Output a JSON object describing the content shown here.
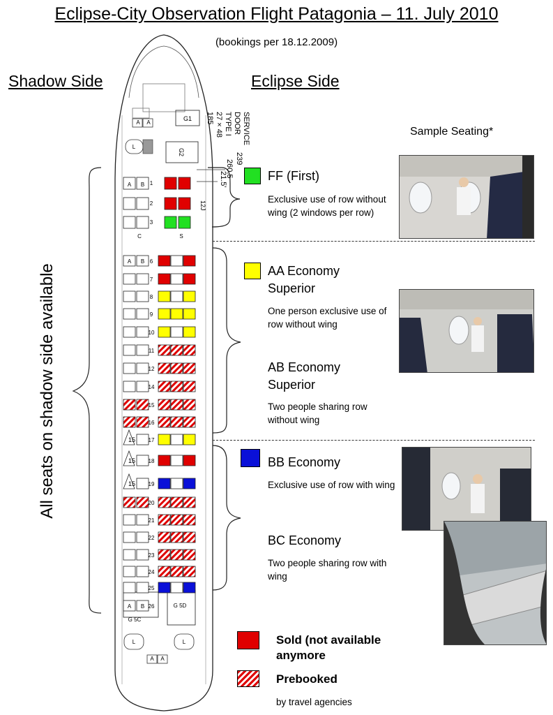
{
  "header": {
    "title": "Eclipse-City Observation Flight Patagonia – 11. July 2010",
    "subtitle": "(bookings per 18.12.2009)"
  },
  "sides": {
    "shadow": "Shadow Side",
    "eclipse": "Eclipse Side",
    "shadow_note": "All seats on shadow side available"
  },
  "sample_heading": "Sample Seating*",
  "door_annotation": {
    "lines": [
      "SERVICE",
      "DOOR",
      "TYPE I",
      "27 × 48",
      "185"
    ],
    "dims": [
      "239",
      "260.5",
      "21.5'"
    ],
    "label_12j": "12J"
  },
  "classes": [
    {
      "code": "FF",
      "name": "FF (First)",
      "desc": "Exclusive use of row without wing (2 windows per row)",
      "color": "#22e022"
    },
    {
      "code": "AA",
      "name": "AA Economy Superior",
      "desc": "One person exclusive use of row without wing",
      "color": "#ffff00"
    },
    {
      "code": "AB",
      "name": "AB Economy Superior",
      "desc": "Two people sharing row without wing",
      "color": ""
    },
    {
      "code": "BB",
      "name": "BB Economy",
      "desc": "Exclusive use of row with wing",
      "color": "#0a10d8"
    },
    {
      "code": "BC",
      "name": "BC Economy",
      "desc": "Two people sharing row with wing",
      "color": ""
    }
  ],
  "legend": {
    "sold": "Sold (not available anymore",
    "prebooked": "Prebooked",
    "prebooked_note": "by travel agencies",
    "sold_color": "#e00000"
  },
  "cabin_labels": {
    "galley_g1": "G1",
    "galley_g2": "G2",
    "galley_5c": "G\n5C",
    "galley_5d": "G\n5D",
    "seat_a": "A",
    "seat_b": "B",
    "seat_c": "C",
    "seat_s": "S",
    "lav": "L",
    "exit_15": "15"
  },
  "seat_map": [
    {
      "row": "1",
      "left": [
        "A",
        "B"
      ],
      "right": [
        "sold",
        "sold"
      ]
    },
    {
      "row": "2",
      "left": [
        "",
        ""
      ],
      "right": [
        "sold",
        "sold"
      ]
    },
    {
      "row": "3",
      "left": [
        "",
        ""
      ],
      "right": [
        "ff",
        "ff"
      ]
    },
    {
      "row": "6",
      "left": [
        "A",
        "B"
      ],
      "right": [
        "sold",
        "empty",
        "sold"
      ]
    },
    {
      "row": "7",
      "left": [
        "",
        ""
      ],
      "right": [
        "sold",
        "empty",
        "sold"
      ]
    },
    {
      "row": "8",
      "left": [
        "",
        ""
      ],
      "right": [
        "aa",
        "empty",
        "aa"
      ]
    },
    {
      "row": "9",
      "left": [
        "",
        ""
      ],
      "right": [
        "aa",
        "aa",
        "aa"
      ]
    },
    {
      "row": "10",
      "left": [
        "",
        ""
      ],
      "right": [
        "aa",
        "empty",
        "aa"
      ]
    },
    {
      "row": "11",
      "left": [
        "",
        ""
      ],
      "right": [
        "pre",
        "pre",
        "pre"
      ]
    },
    {
      "row": "12",
      "left": [
        "",
        ""
      ],
      "right": [
        "pre",
        "pre",
        "pre"
      ]
    },
    {
      "row": "14",
      "left": [
        "",
        ""
      ],
      "right": [
        "pre",
        "pre",
        "pre"
      ]
    },
    {
      "row": "15",
      "left": [
        "pre",
        "pre"
      ],
      "right": [
        "pre",
        "pre",
        "pre"
      ]
    },
    {
      "row": "16",
      "left": [
        "pre",
        "pre"
      ],
      "right": [
        "pre",
        "pre",
        "pre"
      ]
    },
    {
      "row": "17",
      "left": [
        "exit",
        ""
      ],
      "right": [
        "aa",
        "empty",
        "aa"
      ]
    },
    {
      "row": "18",
      "left": [
        "exit",
        ""
      ],
      "right": [
        "sold",
        "empty",
        "sold"
      ]
    },
    {
      "row": "19",
      "left": [
        "exit",
        ""
      ],
      "right": [
        "bb",
        "empty",
        "bb"
      ]
    },
    {
      "row": "20",
      "left": [
        "pre",
        "pre"
      ],
      "right": [
        "pre",
        "pre",
        "pre"
      ]
    },
    {
      "row": "21",
      "left": [
        "",
        ""
      ],
      "right": [
        "pre",
        "pre",
        "pre"
      ]
    },
    {
      "row": "22",
      "left": [
        "",
        ""
      ],
      "right": [
        "pre",
        "pre",
        "pre"
      ]
    },
    {
      "row": "23",
      "left": [
        "",
        ""
      ],
      "right": [
        "pre",
        "pre",
        "pre"
      ]
    },
    {
      "row": "24",
      "left": [
        "",
        ""
      ],
      "right": [
        "pre",
        "pre",
        "pre"
      ]
    },
    {
      "row": "25",
      "left": [
        "",
        ""
      ],
      "right": [
        "bb",
        "empty",
        "bb"
      ]
    },
    {
      "row": "26",
      "left": [
        "A",
        "B"
      ],
      "right": []
    }
  ]
}
